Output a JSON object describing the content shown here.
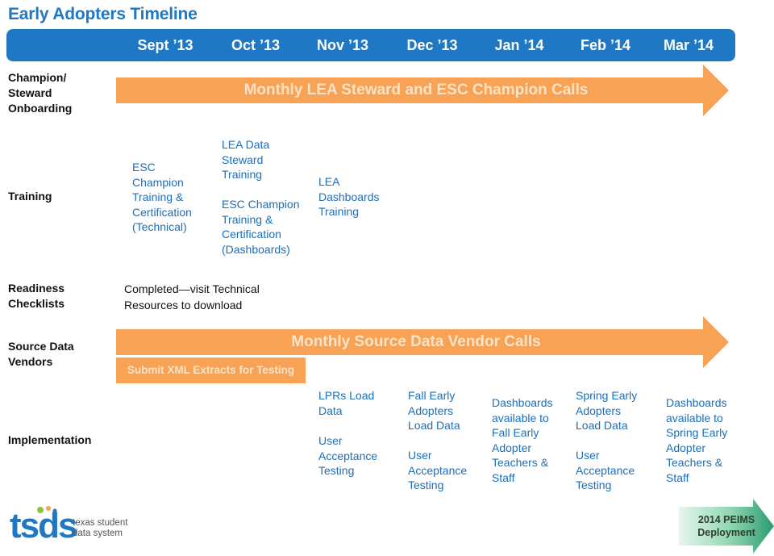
{
  "title": "Early Adopters Timeline",
  "months": [
    "Sept ’13",
    "Oct ’13",
    "Nov ’13",
    "Dec ’13",
    "Jan ’14",
    "Feb ’14",
    "Mar ’14"
  ],
  "rows": {
    "onboarding": [
      "Champion/",
      "Steward",
      "Onboarding"
    ],
    "training": "Training",
    "readiness": [
      "Readiness",
      "Checklists"
    ],
    "vendors": [
      "Source Data",
      "Vendors"
    ],
    "implementation": "Implementation"
  },
  "arrows": {
    "onboarding": "Monthly LEA Steward and ESC Champion Calls",
    "vendors": "Monthly Source Data Vendor Calls"
  },
  "training_items": {
    "esc_technical": [
      "ESC",
      "Champion",
      "Training &",
      "Certification",
      "(Technical)"
    ],
    "lea_steward": [
      "LEA Data",
      "Steward",
      "Training"
    ],
    "esc_dashboards": [
      "ESC Champion",
      "Training &",
      "Certification",
      "(Dashboards)"
    ],
    "lea_dashboards": [
      "LEA",
      "Dashboards",
      "Training"
    ]
  },
  "readiness_text": [
    "Completed—visit Technical",
    "Resources to  download"
  ],
  "xml_box": "Submit XML Extracts for Testing",
  "implementation": {
    "nov_lprs": [
      "LPRs Load",
      "Data"
    ],
    "nov_uat": [
      "User",
      "Acceptance",
      "Testing"
    ],
    "dec_fall": [
      "Fall Early",
      "Adopters",
      "Load Data"
    ],
    "dec_uat": [
      "User",
      "Acceptance",
      "Testing"
    ],
    "jan_dash": [
      "Dashboards",
      "available to",
      "Fall Early",
      "Adopter",
      "Teachers &",
      "Staff"
    ],
    "feb_spring": [
      "Spring Early",
      "Adopters",
      "Load Data"
    ],
    "feb_uat": [
      "User",
      "Acceptance",
      "Testing"
    ],
    "mar_dash": [
      "Dashboards",
      "available to",
      "Spring Early",
      "Adopter",
      "Teachers &",
      "Staff"
    ]
  },
  "logo": {
    "word": "tsds",
    "subtitle": [
      "texas student",
      "data system"
    ]
  },
  "deployment": [
    "2014  PEIMS",
    "Deployment"
  ],
  "colors": {
    "blue": "#1f78c4",
    "orange": "#f7a254",
    "arrow_text": "#fce3c8",
    "green": "#2a9a6e"
  }
}
